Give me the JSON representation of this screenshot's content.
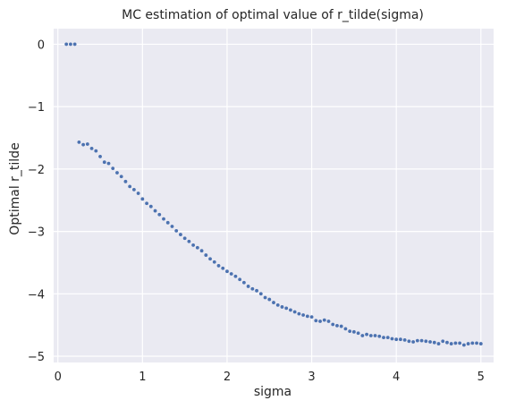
{
  "chart_data": {
    "type": "scatter",
    "title": "MC estimation of optimal value of r_tilde(sigma)",
    "xlabel": "sigma",
    "ylabel": "Optimal r_tilde",
    "xlim": [
      -0.05,
      5.15
    ],
    "ylim": [
      -5.1,
      0.25
    ],
    "xticks": [
      0,
      1,
      2,
      3,
      4,
      5
    ],
    "yticks": [
      0,
      -1,
      -2,
      -3,
      -4,
      -5
    ],
    "grid": true,
    "style": {
      "background": "#EAEAF2",
      "grid_color": "#FFFFFF",
      "marker_color": "#4C72B0"
    },
    "series": [
      {
        "x": [
          0.1,
          0.15,
          0.2,
          0.25,
          0.3,
          0.35,
          0.4,
          0.45,
          0.5,
          0.55,
          0.6,
          0.65,
          0.7,
          0.75,
          0.8,
          0.85,
          0.9,
          0.95,
          1.0,
          1.05,
          1.1,
          1.15,
          1.2,
          1.25,
          1.3,
          1.35,
          1.4,
          1.45,
          1.5,
          1.55,
          1.6,
          1.65,
          1.7,
          1.75,
          1.8,
          1.85,
          1.9,
          1.95,
          2.0,
          2.05,
          2.1,
          2.15,
          2.2,
          2.25,
          2.3,
          2.35,
          2.4,
          2.45,
          2.5,
          2.55,
          2.6,
          2.65,
          2.7,
          2.75,
          2.8,
          2.85,
          2.9,
          2.95,
          3.0,
          3.05,
          3.1,
          3.15,
          3.2,
          3.25,
          3.3,
          3.35,
          3.4,
          3.45,
          3.5,
          3.55,
          3.6,
          3.65,
          3.7,
          3.75,
          3.8,
          3.85,
          3.9,
          3.95,
          4.0,
          4.05,
          4.1,
          4.15,
          4.2,
          4.25,
          4.3,
          4.35,
          4.4,
          4.45,
          4.5,
          4.55,
          4.6,
          4.65,
          4.7,
          4.75,
          4.8,
          4.85,
          4.9,
          4.95,
          5.0
        ],
        "y": [
          0.0,
          0.0,
          0.0,
          -1.57,
          -1.61,
          -1.6,
          -1.67,
          -1.71,
          -1.8,
          -1.89,
          -1.91,
          -1.99,
          -2.06,
          -2.12,
          -2.2,
          -2.28,
          -2.33,
          -2.39,
          -2.48,
          -2.55,
          -2.6,
          -2.67,
          -2.73,
          -2.8,
          -2.86,
          -2.92,
          -2.99,
          -3.05,
          -3.11,
          -3.16,
          -3.22,
          -3.26,
          -3.31,
          -3.38,
          -3.44,
          -3.49,
          -3.55,
          -3.59,
          -3.64,
          -3.68,
          -3.72,
          -3.77,
          -3.82,
          -3.88,
          -3.92,
          -3.95,
          -4.0,
          -4.06,
          -4.09,
          -4.14,
          -4.18,
          -4.21,
          -4.23,
          -4.26,
          -4.29,
          -4.32,
          -4.34,
          -4.36,
          -4.37,
          -4.43,
          -4.44,
          -4.42,
          -4.44,
          -4.49,
          -4.51,
          -4.52,
          -4.56,
          -4.6,
          -4.61,
          -4.63,
          -4.67,
          -4.65,
          -4.67,
          -4.67,
          -4.68,
          -4.7,
          -4.7,
          -4.72,
          -4.73,
          -4.73,
          -4.74,
          -4.76,
          -4.77,
          -4.75,
          -4.75,
          -4.76,
          -4.77,
          -4.78,
          -4.8,
          -4.76,
          -4.78,
          -4.8,
          -4.79,
          -4.79,
          -4.82,
          -4.8,
          -4.79,
          -4.79,
          -4.8
        ]
      }
    ]
  }
}
